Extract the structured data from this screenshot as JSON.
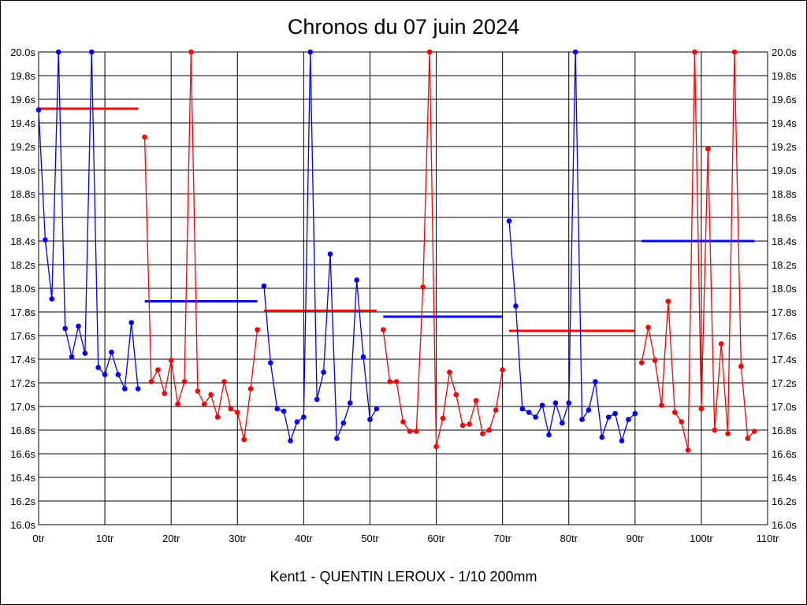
{
  "chart_data": {
    "type": "line",
    "title": "Chronos du 07 juin 2024",
    "xlabel": "Kent1 - QUENTIN LEROUX - 1/10 200mm",
    "ylabel": "",
    "xlim": [
      0,
      110
    ],
    "ylim": [
      16.0,
      20.0
    ],
    "grid": true,
    "x_ticks": [
      "0tr",
      "10tr",
      "20tr",
      "30tr",
      "40tr",
      "50tr",
      "60tr",
      "70tr",
      "80tr",
      "90tr",
      "100tr",
      "110tr"
    ],
    "x_tick_values": [
      0,
      10,
      20,
      30,
      40,
      50,
      60,
      70,
      80,
      90,
      100,
      110
    ],
    "y_ticks": [
      "16.0s",
      "16.2s",
      "16.4s",
      "16.6s",
      "16.8s",
      "17.0s",
      "17.2s",
      "17.4s",
      "17.6s",
      "17.8s",
      "18.0s",
      "18.2s",
      "18.4s",
      "18.6s",
      "18.8s",
      "19.0s",
      "19.2s",
      "19.4s",
      "19.6s",
      "19.8s",
      "20.0s"
    ],
    "y_tick_values": [
      16.0,
      16.2,
      16.4,
      16.6,
      16.8,
      17.0,
      17.2,
      17.4,
      17.6,
      17.8,
      18.0,
      18.2,
      18.4,
      18.6,
      18.8,
      19.0,
      19.2,
      19.4,
      19.6,
      19.8,
      20.0
    ],
    "colors": {
      "blue": "#0000ff",
      "red": "#ff0000"
    },
    "segments": [
      {
        "color": "blue",
        "start_lap": 0,
        "values": [
          19.51,
          18.41,
          17.91,
          20.0,
          17.66,
          17.42,
          17.68,
          17.45,
          20.0,
          17.33,
          17.27,
          17.46,
          17.27,
          17.15,
          17.71,
          17.15
        ]
      },
      {
        "color": "red",
        "start_lap": 16,
        "values": [
          19.28,
          17.21,
          17.31,
          17.11,
          17.39,
          17.02,
          17.21,
          20.0,
          17.13,
          17.02,
          17.1,
          16.91,
          17.21,
          16.98,
          16.95,
          16.72,
          17.15,
          17.65
        ]
      },
      {
        "color": "blue",
        "start_lap": 34,
        "values": [
          18.02,
          17.37,
          16.98,
          16.96,
          16.71,
          16.87,
          16.91,
          20.0,
          17.06,
          17.29,
          18.29,
          16.73,
          16.86,
          17.03,
          18.07,
          17.42,
          16.89,
          16.98
        ]
      },
      {
        "color": "red",
        "start_lap": 52,
        "values": [
          17.65,
          17.21,
          17.21,
          16.87,
          16.79,
          16.79,
          18.01,
          20.0,
          16.66,
          16.9,
          17.29,
          17.1,
          16.84,
          16.85,
          17.05,
          16.77,
          16.8,
          16.97,
          17.31
        ]
      },
      {
        "color": "blue",
        "start_lap": 71,
        "values": [
          18.57,
          17.85,
          16.98,
          16.95,
          16.91,
          17.01,
          16.76,
          17.03,
          16.86,
          17.03,
          20.0,
          16.89,
          16.97,
          17.21,
          16.74,
          16.91,
          16.94,
          16.71,
          16.89,
          16.94
        ]
      },
      {
        "color": "red",
        "start_lap": 91,
        "values": [
          17.37,
          17.67,
          17.39,
          17.01,
          17.89,
          16.95,
          16.87,
          16.63,
          20.0,
          16.98,
          19.18,
          16.8,
          17.53,
          16.77,
          20.0,
          17.34,
          16.73,
          16.79
        ]
      }
    ],
    "averages": [
      {
        "color": "red",
        "x_range": [
          0,
          15
        ],
        "value": 19.52
      },
      {
        "color": "blue",
        "x_range": [
          16,
          33
        ],
        "value": 17.89
      },
      {
        "color": "red",
        "x_range": [
          34,
          51
        ],
        "value": 17.81
      },
      {
        "color": "blue",
        "x_range": [
          52,
          70
        ],
        "value": 17.76
      },
      {
        "color": "red",
        "x_range": [
          71,
          90
        ],
        "value": 17.64
      },
      {
        "color": "blue",
        "x_range": [
          91,
          108
        ],
        "value": 18.4
      }
    ]
  }
}
